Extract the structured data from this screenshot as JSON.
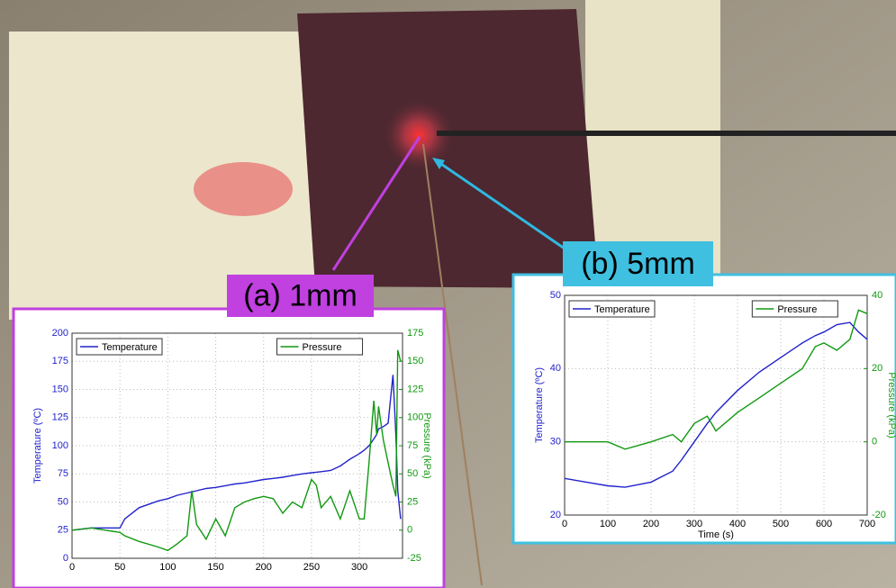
{
  "chart_data": [
    {
      "type": "line",
      "title": "(a) 1mm",
      "y_label": "Temperature (ºC)",
      "y2_label": "Pressure (kPa)",
      "x": [
        0,
        20,
        50,
        55,
        70,
        90,
        100,
        110,
        120,
        125,
        130,
        140,
        150,
        160,
        170,
        180,
        190,
        200,
        210,
        220,
        230,
        240,
        250,
        255,
        260,
        270,
        280,
        290,
        300,
        305,
        310,
        315,
        318,
        320,
        325,
        330,
        335,
        338,
        340,
        343
      ],
      "xlim": [
        0,
        345
      ],
      "xticks": [
        0,
        50,
        100,
        150,
        200,
        250,
        300
      ],
      "ylim": [
        0,
        200
      ],
      "yticks": [
        0,
        25,
        50,
        75,
        100,
        125,
        150,
        175,
        200
      ],
      "y2lim": [
        -25,
        175
      ],
      "y2ticks": [
        -25,
        0,
        25,
        50,
        75,
        100,
        125,
        150,
        175
      ],
      "grid": true,
      "legend": "upper",
      "series": [
        {
          "name": "Temperature",
          "color": "#2222cc",
          "values": [
            25,
            27,
            27,
            35,
            45,
            51,
            53,
            56,
            58,
            59,
            60,
            62,
            63,
            64.5,
            66,
            67,
            68.5,
            70,
            71,
            72,
            73.5,
            75,
            76,
            76.5,
            77,
            78,
            82,
            88,
            93,
            96,
            100,
            106,
            110,
            115,
            117,
            120,
            163,
            110,
            60,
            35
          ]
        },
        {
          "name": "Pressure",
          "color": "#119911",
          "axis": "y2",
          "values": [
            0,
            2,
            -2,
            -5,
            -10,
            -15,
            -18,
            -12,
            -5,
            35,
            5,
            -8,
            10,
            -5,
            20,
            25,
            28,
            30,
            28,
            15,
            25,
            20,
            45,
            40,
            20,
            30,
            10,
            35,
            10,
            10,
            60,
            115,
            85,
            110,
            80,
            60,
            40,
            30,
            160,
            150
          ]
        }
      ]
    },
    {
      "type": "line",
      "title": "(b) 5mm",
      "x_label": "Time (s)",
      "y_label": "Temperature (ºC)",
      "y2_label": "Pressure (kPa)",
      "x": [
        0,
        50,
        100,
        140,
        200,
        250,
        270,
        300,
        330,
        350,
        400,
        450,
        500,
        550,
        580,
        600,
        630,
        660,
        680,
        700
      ],
      "xlim": [
        0,
        700
      ],
      "xticks": [
        0,
        100,
        200,
        300,
        400,
        500,
        600,
        700
      ],
      "ylim": [
        20,
        50
      ],
      "yticks": [
        20,
        30,
        40,
        50
      ],
      "y2lim": [
        -20,
        40
      ],
      "y2ticks": [
        -20,
        0,
        20,
        40
      ],
      "grid": true,
      "legend": "upper",
      "series": [
        {
          "name": "Temperature",
          "color": "#2222cc",
          "values": [
            25,
            24.5,
            24,
            23.8,
            24.5,
            26,
            27.5,
            30,
            32.5,
            34,
            37,
            39.5,
            41.5,
            43.5,
            44.5,
            45,
            46,
            46.3,
            45,
            44
          ]
        },
        {
          "name": "Pressure",
          "color": "#119911",
          "axis": "y2",
          "values": [
            0,
            0,
            0,
            -2,
            0,
            2,
            0,
            5,
            7,
            3,
            8,
            12,
            16,
            20,
            26,
            27,
            25,
            28,
            36,
            35
          ]
        }
      ]
    }
  ]
}
